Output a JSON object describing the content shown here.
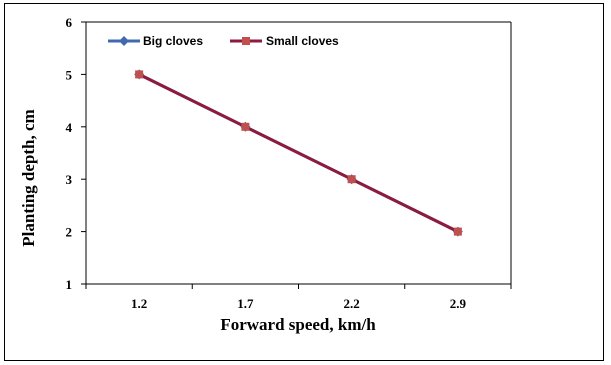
{
  "chart_data": {
    "type": "line",
    "categories": [
      "1.2",
      "1.7",
      "2.2",
      "2.9"
    ],
    "series": [
      {
        "name": "Big cloves",
        "values": [
          5,
          4,
          3,
          2
        ],
        "color": "#4169B0",
        "marker": "diamond"
      },
      {
        "name": "Small cloves",
        "values": [
          5,
          4,
          3,
          2
        ],
        "color": "#8E1A3C",
        "marker": "square",
        "marker_color": "#C0504D"
      }
    ],
    "xlabel": "Forward speed, km/h",
    "ylabel": "Planting depth, cm",
    "ylim": [
      1,
      6
    ],
    "yticks": [
      "1",
      "2",
      "3",
      "4",
      "5",
      "6"
    ],
    "grid": false,
    "legend_position": "top-left"
  }
}
